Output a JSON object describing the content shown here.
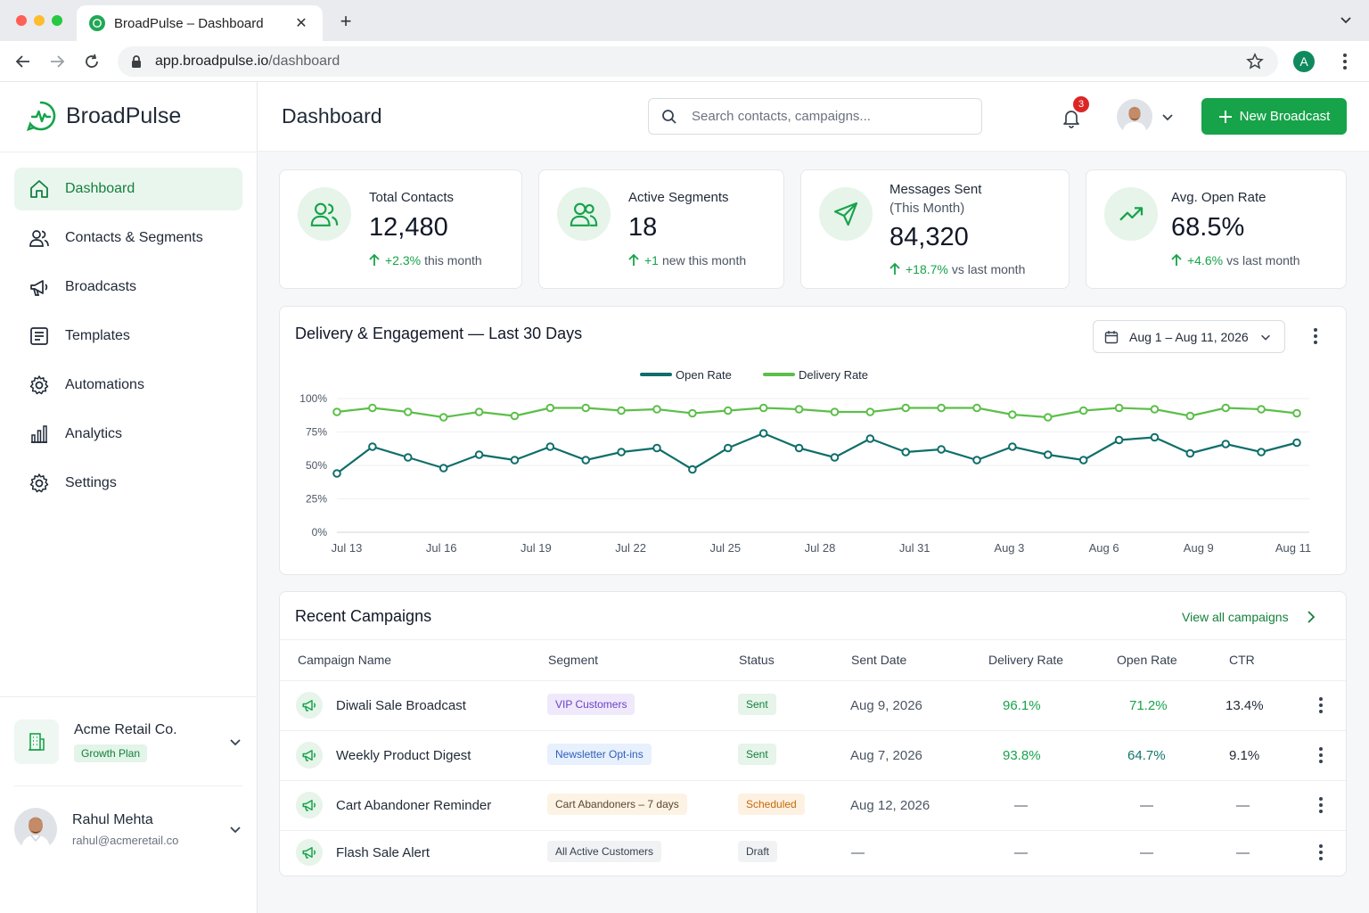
{
  "browser": {
    "tab_title": "BroadPulse – Dashboard",
    "url_host": "app.broadpulse.io",
    "url_path": "/dashboard",
    "profile_initial": "A"
  },
  "brand": {
    "name": "BroadPulse",
    "accent": "#16a34a"
  },
  "sidebar": {
    "items": [
      {
        "label": "Dashboard",
        "icon": "home-icon",
        "active": true
      },
      {
        "label": "Contacts & Segments",
        "icon": "users-icon"
      },
      {
        "label": "Broadcasts",
        "icon": "megaphone-icon"
      },
      {
        "label": "Templates",
        "icon": "template-icon"
      },
      {
        "label": "Automations",
        "icon": "gear-icon"
      },
      {
        "label": "Analytics",
        "icon": "bar-chart-icon"
      },
      {
        "label": "Settings",
        "icon": "settings-icon"
      }
    ],
    "org": {
      "name": "Acme Retail Co.",
      "plan": "Growth Plan"
    },
    "user": {
      "name": "Rahul Mehta",
      "email": "rahul@acmeretail.co"
    }
  },
  "header": {
    "title": "Dashboard",
    "search_placeholder": "Search contacts, campaigns...",
    "notification_count": "3",
    "new_button": "New Broadcast"
  },
  "kpis": [
    {
      "label": "Total Contacts",
      "value": "12,480",
      "delta": "+2.3%",
      "delta_text": "this month",
      "icon": "users-icon"
    },
    {
      "label": "Active Segments",
      "value": "18",
      "delta": "+1",
      "delta_text": "new this month",
      "icon": "users-icon"
    },
    {
      "label": "Messages Sent",
      "label2": "(This Month)",
      "value": "84,320",
      "delta": "+18.7%",
      "delta_text": "vs last month",
      "icon": "send-icon"
    },
    {
      "label": "Avg. Open Rate",
      "value": "68.5%",
      "delta": "+4.6%",
      "delta_text": "vs last month",
      "icon": "trend-up-icon"
    }
  ],
  "chart": {
    "title": "Delivery & Engagement — Last 30 Days",
    "date_range": "Aug 1 – Aug 11,  2026"
  },
  "chart_data": {
    "type": "line",
    "title": "Delivery & Engagement — Last 30 Days",
    "x_ticks": [
      "Jul 13",
      "Jul 16",
      "Jul 19",
      "Jul 22",
      "Jul 25",
      "Jul 28",
      "Jul 31",
      "Aug 3",
      "Aug 6",
      "Aug 9",
      "Aug 11"
    ],
    "y_ticks": [
      "0%",
      "25%",
      "50%",
      "75%",
      "100%"
    ],
    "ylim": [
      0,
      100
    ],
    "legend_position": "top-center",
    "grid": true,
    "series": [
      {
        "name": "Open Rate",
        "color": "#0f6e6a",
        "values": [
          44,
          64,
          56,
          48,
          58,
          54,
          64,
          54,
          60,
          63,
          47,
          63,
          74,
          63,
          56,
          70,
          60,
          62,
          54,
          64,
          58,
          54,
          69,
          71,
          59,
          66,
          60,
          67
        ]
      },
      {
        "name": "Delivery Rate",
        "color": "#5cbf4a",
        "values": [
          90,
          93,
          90,
          86,
          90,
          87,
          93,
          93,
          91,
          92,
          89,
          91,
          93,
          92,
          90,
          90,
          93,
          93,
          93,
          88,
          86,
          91,
          93,
          92,
          87,
          93,
          92,
          89
        ]
      }
    ]
  },
  "campaigns": {
    "title": "Recent Campaigns",
    "view_all": "View all campaigns",
    "columns": [
      "Campaign Name",
      "Segment",
      "Status",
      "Sent Date",
      "Delivery Rate",
      "Open Rate",
      "CTR"
    ],
    "rows": [
      {
        "name": "Diwali Sale Broadcast",
        "segment": "VIP Customers",
        "status": "Sent",
        "date": "Aug 9, 2026",
        "delivery": "96.1%",
        "open": "71.2%",
        "ctr": "13.4%"
      },
      {
        "name": "Weekly Product Digest",
        "segment": "Newsletter Opt-ins",
        "status": "Sent",
        "date": "Aug 7, 2026",
        "delivery": "93.8%",
        "open": "64.7%",
        "ctr": "9.1%"
      },
      {
        "name": "Cart Abandoner Reminder",
        "segment": "Cart Abandoners – 7 days",
        "status": "Scheduled",
        "date": "Aug 12, 2026",
        "delivery": "—",
        "open": "—",
        "ctr": "—"
      },
      {
        "name": "Flash Sale Alert",
        "segment": "All Active Customers",
        "status": "Draft",
        "date": "—",
        "delivery": "—",
        "open": "—",
        "ctr": "—"
      }
    ]
  }
}
